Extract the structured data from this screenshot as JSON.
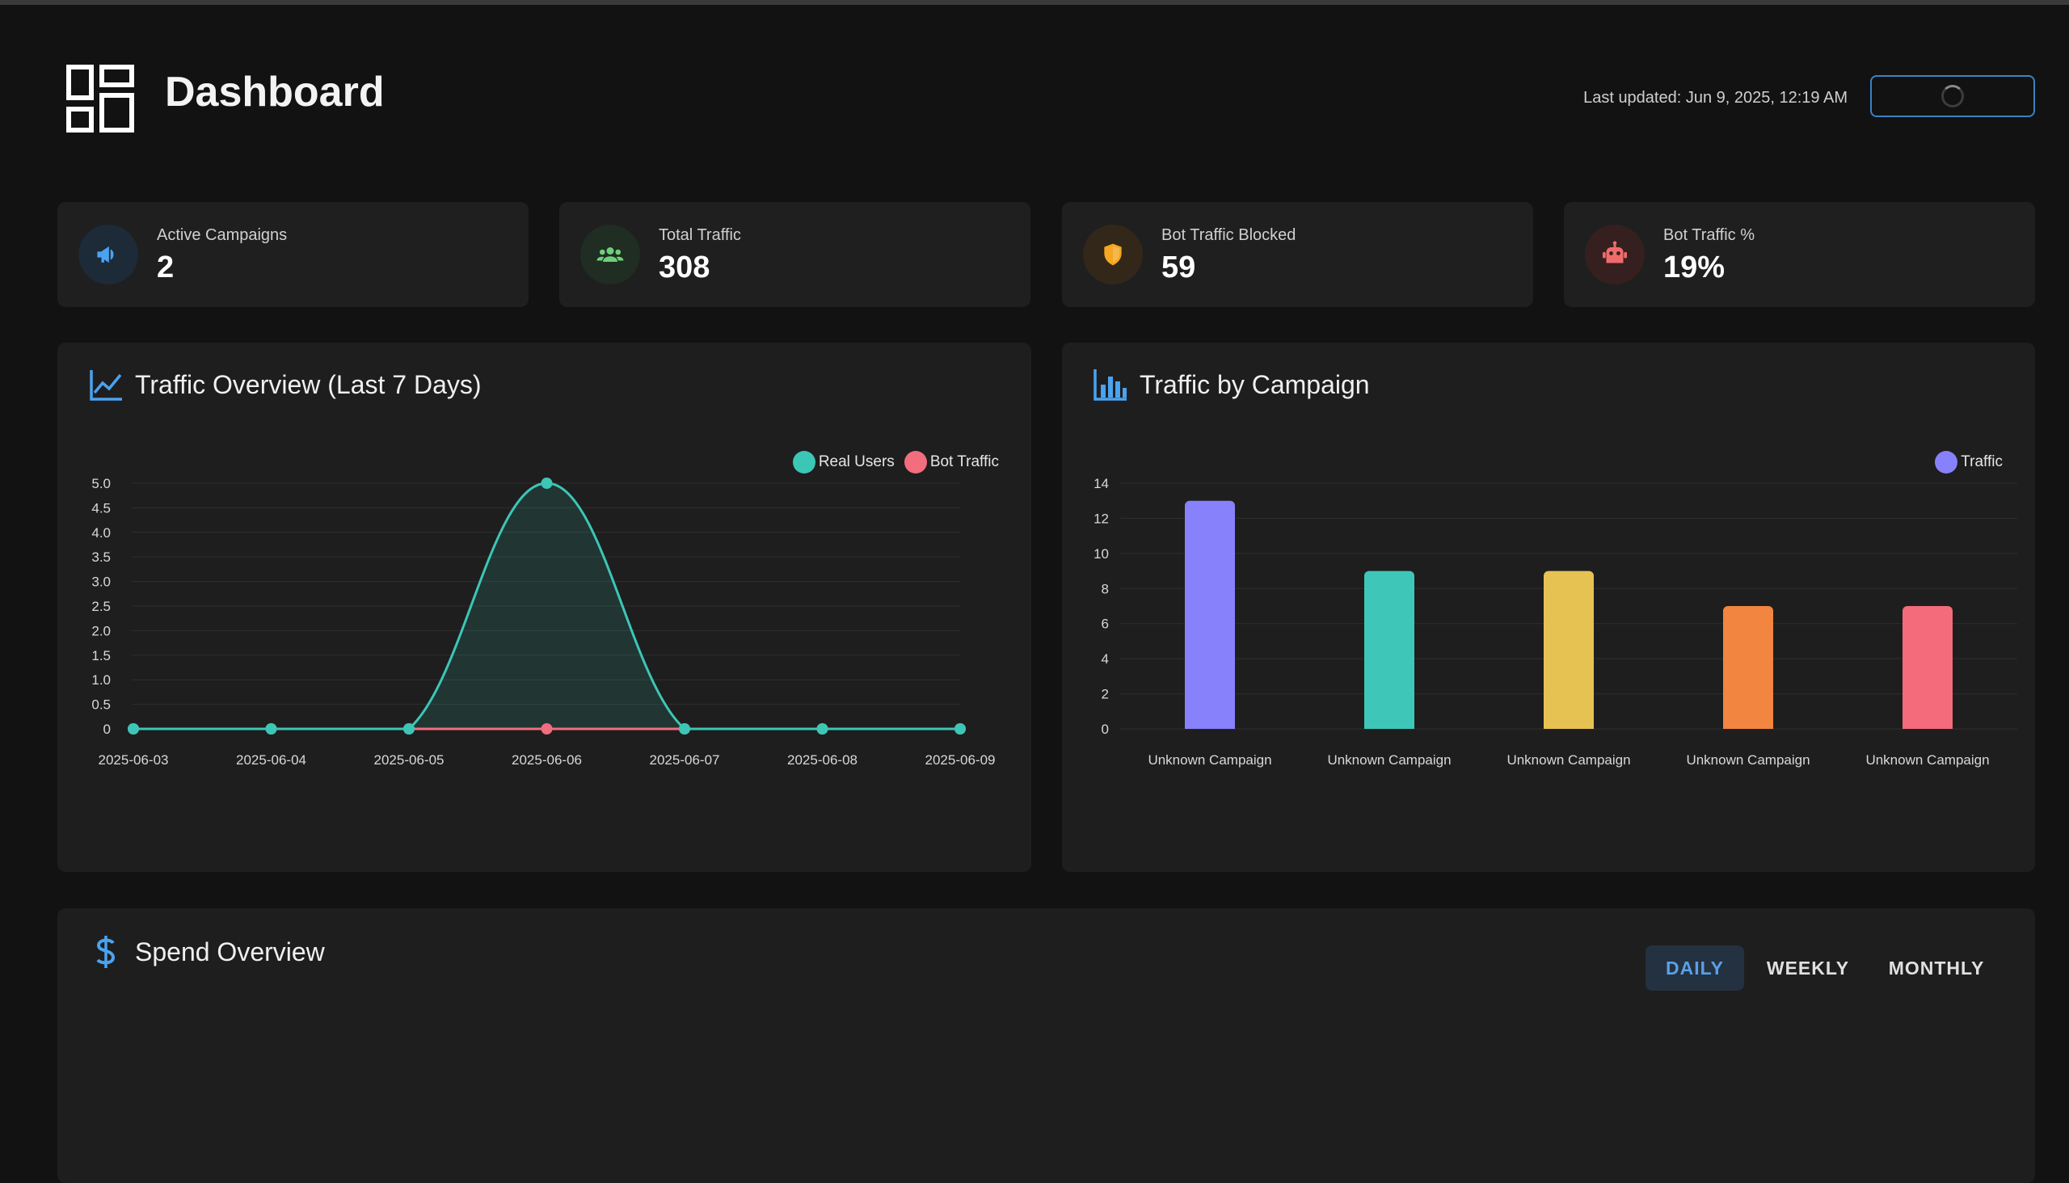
{
  "header": {
    "title": "Dashboard",
    "last_updated": "Last updated: Jun 9, 2025, 12:19 AM"
  },
  "stats": [
    {
      "label": "Active Campaigns",
      "value": "2",
      "icon": "megaphone-icon",
      "color": "#4aa3f0"
    },
    {
      "label": "Total Traffic",
      "value": "308",
      "icon": "users-icon",
      "color": "#6fcf7a"
    },
    {
      "label": "Bot Traffic Blocked",
      "value": "59",
      "icon": "shield-icon",
      "color": "#f5a623"
    },
    {
      "label": "Bot Traffic %",
      "value": "19%",
      "icon": "robot-icon",
      "color": "#f06b6b"
    }
  ],
  "traffic_overview": {
    "title": "Traffic Overview (Last 7 Days)",
    "legend": [
      "Real Users",
      "Bot Traffic"
    ]
  },
  "traffic_by_campaign": {
    "title": "Traffic by Campaign",
    "legend": [
      "Traffic"
    ]
  },
  "spend_overview": {
    "title": "Spend Overview",
    "tabs": [
      {
        "label": "DAILY",
        "active": true
      },
      {
        "label": "WEEKLY",
        "active": false
      },
      {
        "label": "MONTHLY",
        "active": false
      }
    ]
  },
  "colors": {
    "accent": "#4aa3f0",
    "real_users": "#3cc6b6",
    "bot_traffic": "#f26d7d"
  },
  "chart_data": [
    {
      "type": "line",
      "title": "Traffic Overview (Last 7 Days)",
      "x": [
        "2025-06-03",
        "2025-06-04",
        "2025-06-05",
        "2025-06-06",
        "2025-06-07",
        "2025-06-08",
        "2025-06-09"
      ],
      "series": [
        {
          "name": "Real Users",
          "values": [
            0,
            0,
            0,
            5,
            0,
            0,
            0
          ],
          "color": "#3cc6b6"
        },
        {
          "name": "Bot Traffic",
          "values": [
            0,
            0,
            0,
            0,
            0,
            0,
            0
          ],
          "color": "#f26d7d"
        }
      ],
      "yticks": [
        "0",
        "0.5",
        "1.0",
        "1.5",
        "2.0",
        "2.5",
        "3.0",
        "3.5",
        "4.0",
        "4.5",
        "5.0"
      ],
      "ylim": [
        0,
        5
      ],
      "grid": true,
      "legend": "top-right"
    },
    {
      "type": "bar",
      "title": "Traffic by Campaign",
      "categories": [
        "Unknown Campaign",
        "Unknown Campaign",
        "Unknown Campaign",
        "Unknown Campaign",
        "Unknown Campaign"
      ],
      "series": [
        {
          "name": "Traffic",
          "values": [
            13,
            9,
            9,
            7,
            7
          ]
        }
      ],
      "bar_colors": [
        "#8781fb",
        "#3ec7b8",
        "#e6c252",
        "#f2853f",
        "#f46b7b"
      ],
      "yticks": [
        "0",
        "2",
        "4",
        "6",
        "8",
        "10",
        "12",
        "14"
      ],
      "ylim": [
        0,
        14
      ],
      "grid": true,
      "legend": "top-right"
    }
  ]
}
